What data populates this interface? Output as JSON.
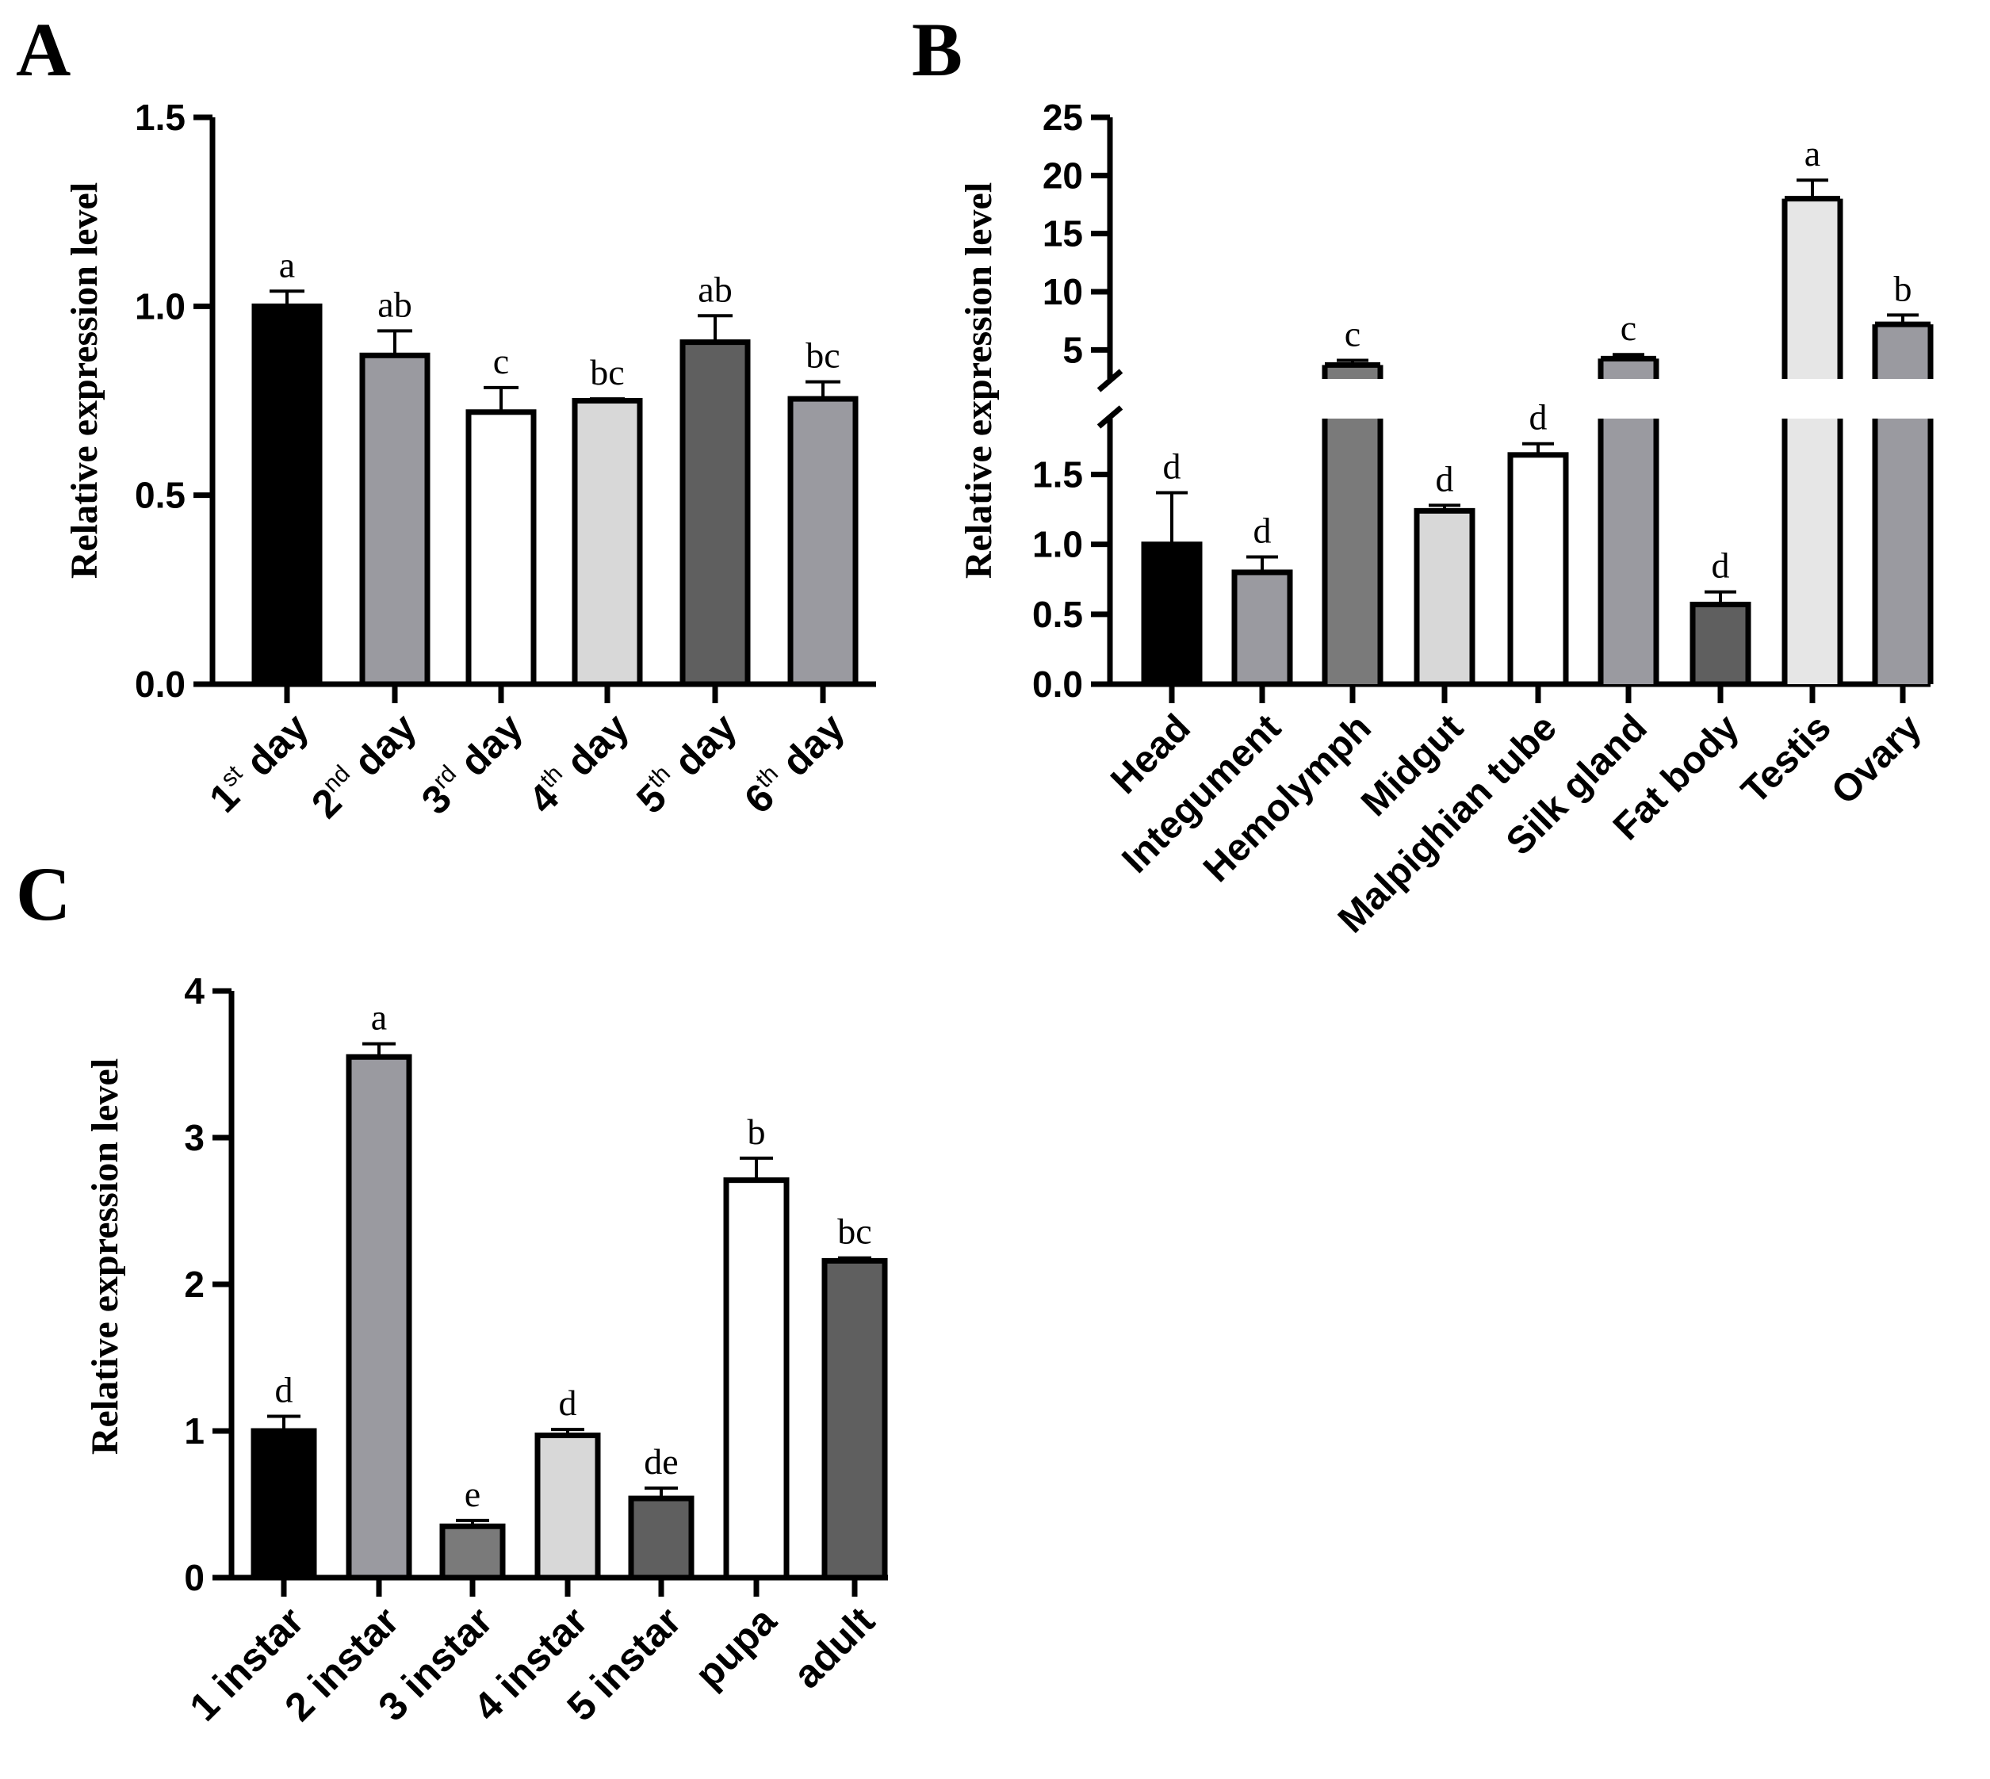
{
  "chart_data": [
    {
      "panel": "A",
      "type": "bar",
      "ylabel": "Relative expression level",
      "ylim": [
        0,
        1.5
      ],
      "yticks": [
        "0.0",
        "0.5",
        "1.0",
        "1.5"
      ],
      "categories": [
        {
          "num": "1",
          "sup": "st",
          "rest": " day"
        },
        {
          "num": "2",
          "sup": "nd",
          "rest": " day"
        },
        {
          "num": "3",
          "sup": "rd",
          "rest": " day"
        },
        {
          "num": "4",
          "sup": "th",
          "rest": " day"
        },
        {
          "num": "5",
          "sup": "th",
          "rest": " day"
        },
        {
          "num": "6",
          "sup": "th",
          "rest": " day"
        }
      ],
      "values": [
        1.0,
        0.87,
        0.72,
        0.75,
        0.905,
        0.755
      ],
      "errors": [
        0.04,
        0.065,
        0.065,
        0.005,
        0.07,
        0.045
      ],
      "letters": [
        "a",
        "ab",
        "c",
        "bc",
        "ab",
        "bc"
      ],
      "colors": [
        "#000000",
        "#9a9aa0",
        "#ffffff",
        "#d8d8d8",
        "#5f5f5f",
        "#9a9aa0"
      ]
    },
    {
      "panel": "B",
      "type": "bar",
      "broken_axis": true,
      "ylabel": "Relative expression level",
      "lower_ylim": [
        0,
        1.9
      ],
      "upper_ylim": [
        2.5,
        25
      ],
      "yticks_lower": [
        "0.0",
        "0.5",
        "1.0",
        "1.5"
      ],
      "yticks_upper": [
        "5",
        "10",
        "15",
        "20",
        "25"
      ],
      "categories": [
        "Head",
        "Integument",
        "Hemolymph",
        "Midgut",
        "Malpighian tube",
        "Silk gland",
        "Fat body",
        "Testis",
        "Ovary"
      ],
      "values": [
        1.0,
        0.8,
        3.7,
        1.24,
        1.64,
        4.25,
        0.57,
        18.0,
        7.2
      ],
      "errors": [
        0.37,
        0.11,
        0.4,
        0.04,
        0.08,
        0.35,
        0.09,
        1.6,
        0.8
      ],
      "letters": [
        "d",
        "d",
        "c",
        "d",
        "d",
        "c",
        "d",
        "a",
        "b"
      ],
      "colors": [
        "#000000",
        "#9a9aa0",
        "#7a7a7a",
        "#d8d8d8",
        "#ffffff",
        "#9a9aa0",
        "#5f5f5f",
        "#e6e6e6",
        "#9a9aa0"
      ]
    },
    {
      "panel": "C",
      "type": "bar",
      "ylabel": "Relative expression level",
      "ylim": [
        0,
        4
      ],
      "yticks": [
        "0",
        "1",
        "2",
        "3",
        "4"
      ],
      "categories": [
        "1 instar",
        "2 instar",
        "3 instar",
        "4 instar",
        "5 instar",
        "pupa",
        "adult"
      ],
      "values": [
        1.0,
        3.55,
        0.35,
        0.97,
        0.54,
        2.71,
        2.16
      ],
      "errors": [
        0.1,
        0.09,
        0.04,
        0.04,
        0.07,
        0.15,
        0.02
      ],
      "letters": [
        "d",
        "a",
        "e",
        "d",
        "de",
        "b",
        "bc"
      ],
      "colors": [
        "#000000",
        "#9a9aa0",
        "#7a7a7a",
        "#d8d8d8",
        "#5f5f5f",
        "#ffffff",
        "#5f5f5f"
      ]
    }
  ],
  "panel_labels": [
    "A",
    "B",
    "C"
  ]
}
